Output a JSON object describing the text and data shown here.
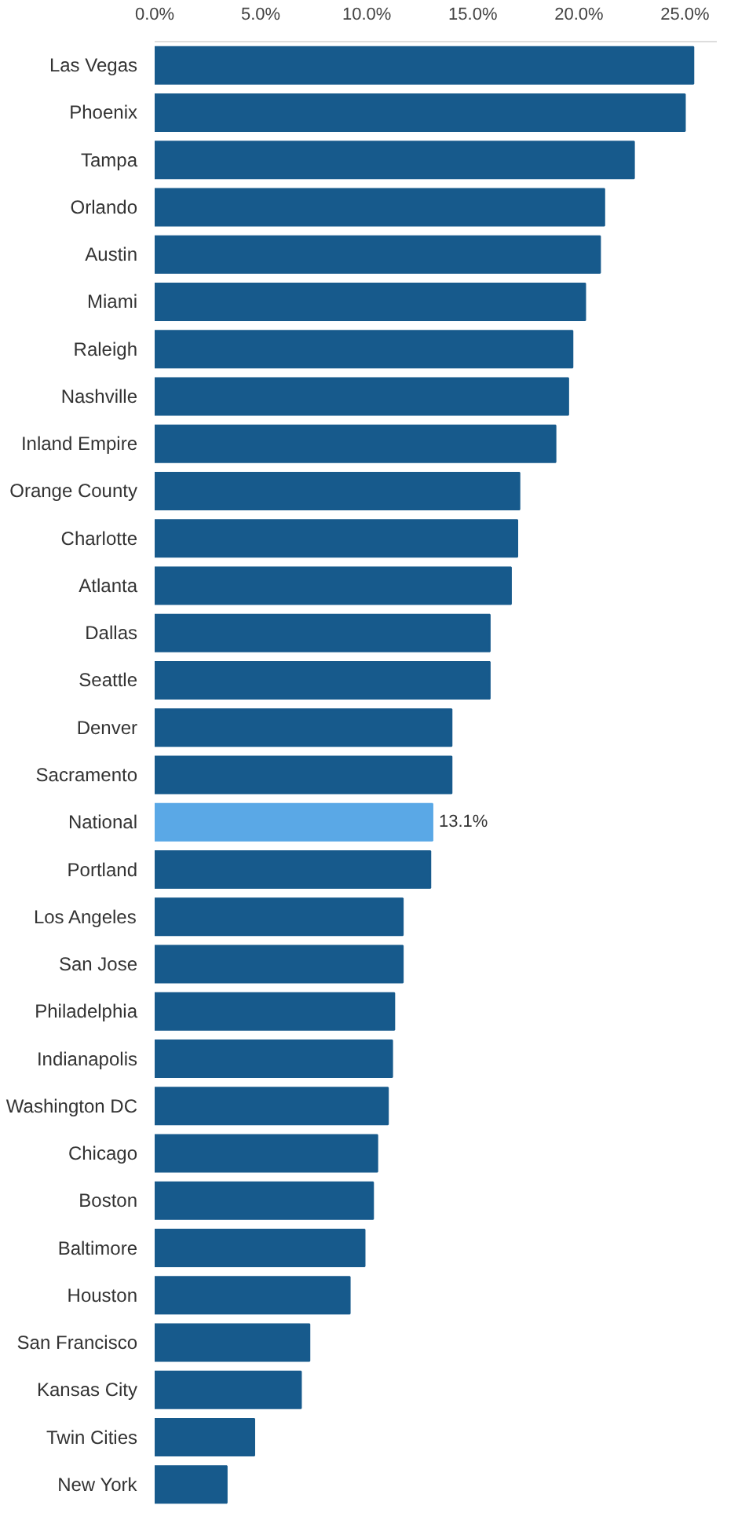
{
  "chart_data": {
    "type": "bar",
    "orientation": "horizontal",
    "categories": [
      "Las Vegas",
      "Phoenix",
      "Tampa",
      "Orlando",
      "Austin",
      "Miami",
      "Raleigh",
      "Nashville",
      "Inland Empire",
      "Orange County",
      "Charlotte",
      "Atlanta",
      "Dallas",
      "Seattle",
      "Denver",
      "Sacramento",
      "National",
      "Portland",
      "Los Angeles",
      "San Jose",
      "Philadelphia",
      "Indianapolis",
      "Washington DC",
      "Chicago",
      "Boston",
      "Baltimore",
      "Houston",
      "San Francisco",
      "Kansas City",
      "Twin Cities",
      "New York"
    ],
    "values": [
      25.4,
      25.0,
      22.6,
      21.2,
      21.0,
      20.3,
      19.7,
      19.5,
      18.9,
      17.2,
      17.1,
      16.8,
      15.8,
      15.8,
      14.0,
      14.0,
      13.1,
      13.0,
      11.7,
      11.7,
      11.3,
      11.2,
      11.0,
      10.5,
      10.3,
      9.9,
      9.2,
      7.3,
      6.9,
      4.7,
      3.4
    ],
    "colors": [
      "#175a8c",
      "#175a8c",
      "#175a8c",
      "#175a8c",
      "#175a8c",
      "#175a8c",
      "#175a8c",
      "#175a8c",
      "#175a8c",
      "#175a8c",
      "#175a8c",
      "#175a8c",
      "#175a8c",
      "#175a8c",
      "#175a8c",
      "#175a8c",
      "#5aa8e6",
      "#175a8c",
      "#175a8c",
      "#175a8c",
      "#175a8c",
      "#175a8c",
      "#175a8c",
      "#175a8c",
      "#175a8c",
      "#175a8c",
      "#175a8c",
      "#175a8c",
      "#175a8c",
      "#175a8c",
      "#175a8c"
    ],
    "value_labels": [
      null,
      null,
      null,
      null,
      null,
      null,
      null,
      null,
      null,
      null,
      null,
      null,
      null,
      null,
      null,
      null,
      "13.1%",
      null,
      null,
      null,
      null,
      null,
      null,
      null,
      null,
      null,
      null,
      null,
      null,
      null,
      null
    ],
    "xlim": [
      0,
      26.5
    ],
    "xticks": [
      {
        "value": 0,
        "label": "0.0%"
      },
      {
        "value": 5,
        "label": "5.0%"
      },
      {
        "value": 10,
        "label": "10.0%"
      },
      {
        "value": 15,
        "label": "15.0%"
      },
      {
        "value": 20,
        "label": "20.0%"
      },
      {
        "value": 25,
        "label": "25.0%"
      }
    ],
    "grid": false
  }
}
